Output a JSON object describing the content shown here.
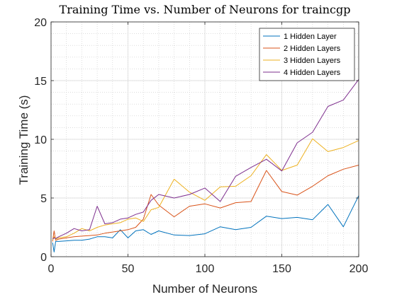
{
  "chart_data": {
    "type": "line",
    "title": "Training Time vs. Number of Neurons for traincgp",
    "xlabel": "Number of Neurons",
    "ylabel": "Training Time (s)",
    "xlim": [
      0,
      200
    ],
    "ylim": [
      0,
      20
    ],
    "xticks": [
      "0",
      "50",
      "100",
      "150",
      "200"
    ],
    "yticks": [
      "0",
      "5",
      "10",
      "15",
      "20"
    ],
    "grid": "minor-dotted",
    "legend_position": "top-right",
    "x": [
      1,
      2,
      3,
      5,
      10,
      15,
      20,
      25,
      30,
      35,
      40,
      45,
      50,
      55,
      60,
      65,
      70,
      80,
      90,
      100,
      110,
      120,
      130,
      140,
      150,
      160,
      170,
      180,
      190,
      200
    ],
    "series": [
      {
        "name": "1 Hidden Layer",
        "color": "#0072BD",
        "values": [
          1.2,
          0.4,
          1.3,
          1.3,
          1.35,
          1.4,
          1.4,
          1.5,
          1.7,
          1.7,
          1.6,
          2.3,
          1.6,
          2.2,
          2.3,
          1.9,
          2.2,
          1.85,
          1.8,
          1.95,
          2.55,
          2.3,
          2.5,
          3.45,
          3.25,
          3.35,
          3.15,
          4.45,
          2.55,
          5.2
        ]
      },
      {
        "name": "2 Hidden Layers",
        "color": "#D95319",
        "values": [
          1.3,
          2.2,
          1.4,
          1.5,
          1.6,
          1.7,
          1.75,
          1.8,
          1.85,
          2.0,
          2.1,
          2.2,
          2.3,
          2.5,
          3.2,
          5.3,
          4.4,
          3.4,
          4.3,
          4.5,
          4.15,
          4.6,
          4.7,
          7.35,
          5.55,
          5.25,
          6.0,
          6.9,
          7.45,
          7.8
        ]
      },
      {
        "name": "3 Hidden Layers",
        "color": "#EDB120",
        "values": [
          1.4,
          1.7,
          1.5,
          1.6,
          1.7,
          2.0,
          2.4,
          2.2,
          2.5,
          2.7,
          2.8,
          2.9,
          3.2,
          3.3,
          3.0,
          4.0,
          4.2,
          6.6,
          5.5,
          4.8,
          5.95,
          6.0,
          6.9,
          8.7,
          7.35,
          7.8,
          10.05,
          8.95,
          9.3,
          9.9
        ]
      },
      {
        "name": "4 Hidden Layers",
        "color": "#7E2F8E",
        "values": [
          1.5,
          1.6,
          1.55,
          1.7,
          2.0,
          2.4,
          2.2,
          2.3,
          4.3,
          2.8,
          2.9,
          3.2,
          3.3,
          3.6,
          3.8,
          4.8,
          5.3,
          5.0,
          5.3,
          5.85,
          4.7,
          6.85,
          7.6,
          8.3,
          7.3,
          9.7,
          10.6,
          12.8,
          13.35,
          15.1
        ]
      }
    ]
  }
}
